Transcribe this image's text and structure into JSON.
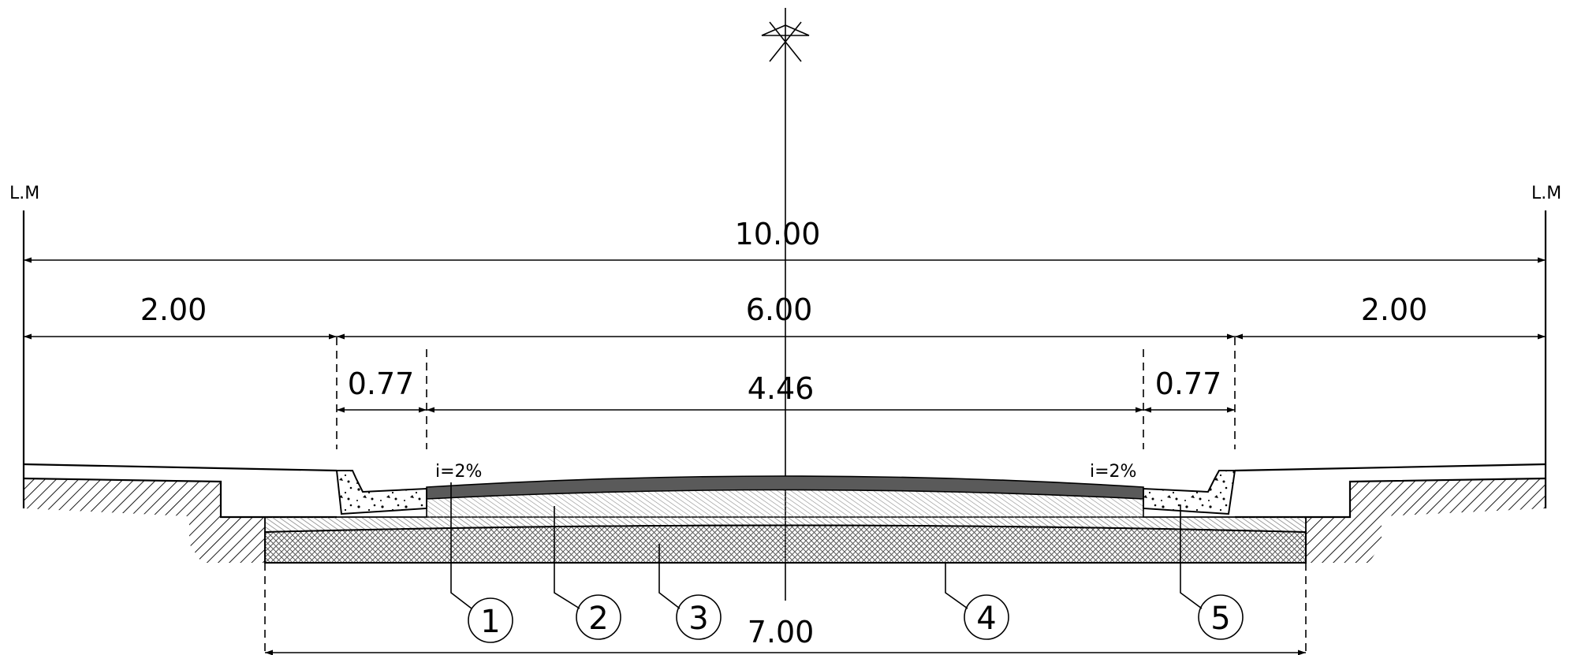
{
  "labels": {
    "left_marker": "L.M",
    "right_marker": "L.M",
    "slope_left": "i=2%",
    "slope_right": "i=2%"
  },
  "dimensions": {
    "total": "10.00",
    "left_side": "2.00",
    "carriageway": "6.00",
    "right_side": "2.00",
    "left_gutter": "0.77",
    "pavement": "4.46",
    "right_gutter": "0.77",
    "base_width": "7.00"
  },
  "callouts": [
    "1",
    "2",
    "3",
    "4",
    "5"
  ],
  "colors": {
    "line": "#000000",
    "asphalt": "#5a5a5a",
    "background": "#ffffff"
  }
}
